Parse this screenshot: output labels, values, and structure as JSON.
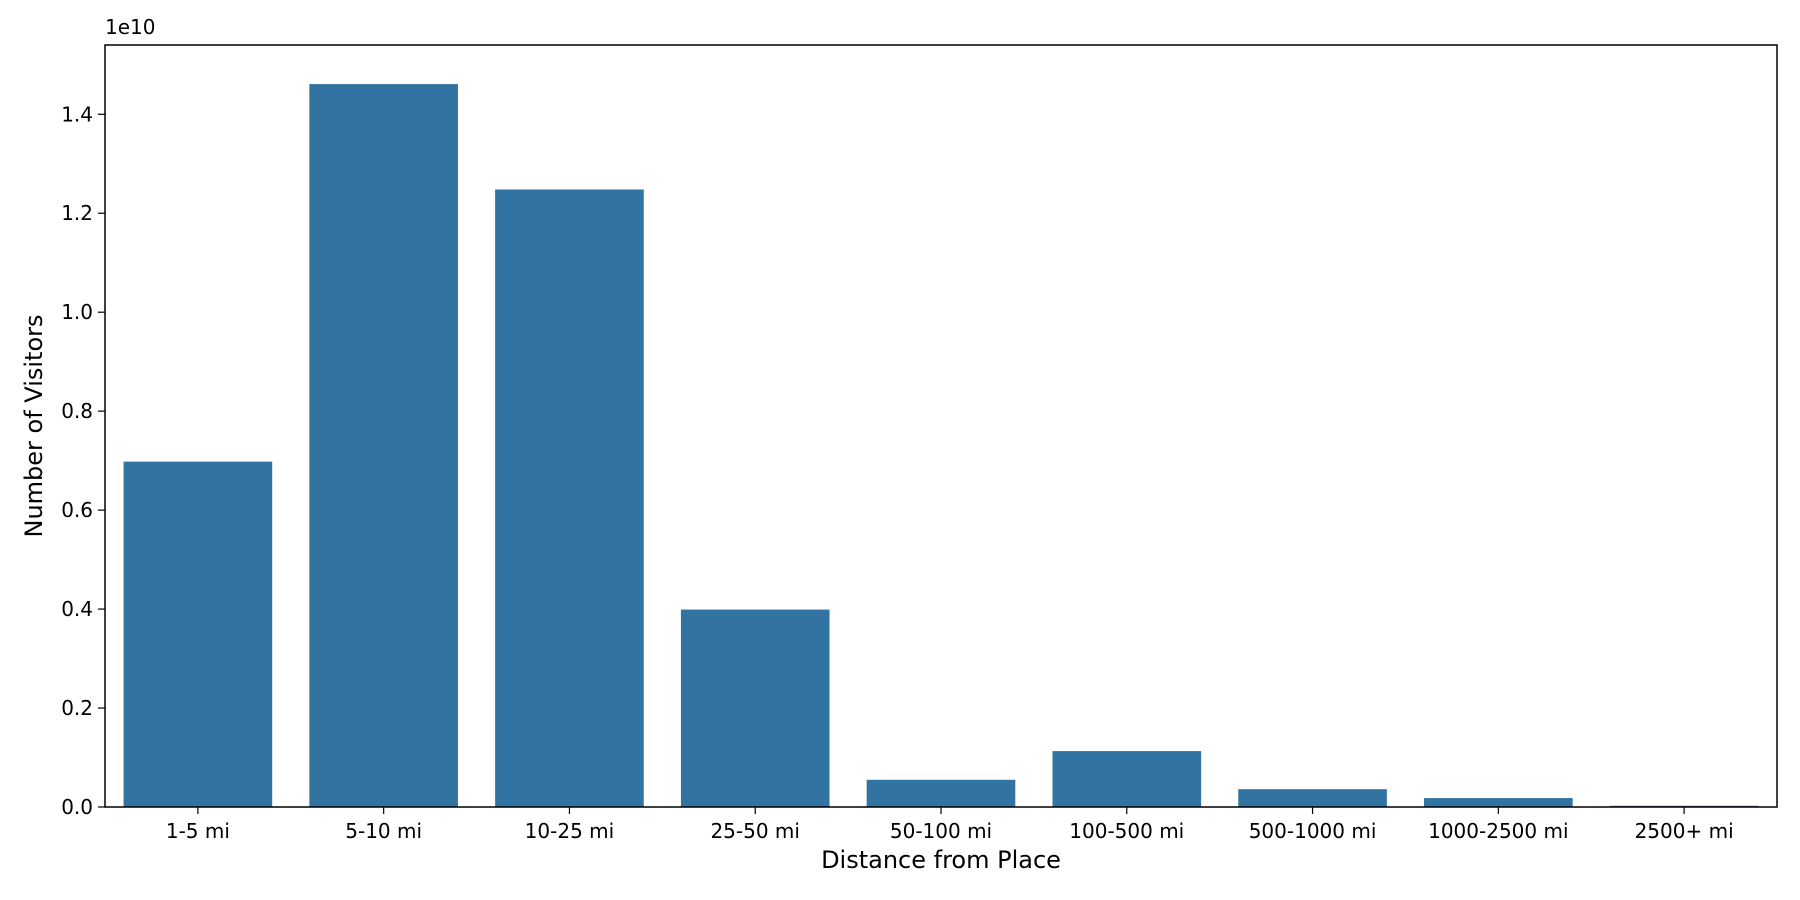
{
  "chart_data": {
    "type": "bar",
    "title": "",
    "xlabel": "Distance from Place",
    "ylabel": "Number of Visitors",
    "y_scale_label": "1e10",
    "y_scale": 10000000000,
    "categories": [
      "1-5 mi",
      "5-10 mi",
      "10-25 mi",
      "25-50 mi",
      "50-100 mi",
      "100-500 mi",
      "500-1000 mi",
      "1000-2500 mi",
      "2500+ mi"
    ],
    "values": [
      6980000000,
      14610000000,
      12480000000,
      3990000000,
      550000000,
      1130000000,
      360000000,
      180000000,
      25000000
    ],
    "ylim": [
      0,
      15400000000
    ],
    "yticks": [
      0.0,
      0.2,
      0.4,
      0.6,
      0.8,
      1.0,
      1.2,
      1.4
    ],
    "ytick_labels": [
      "0.0",
      "0.2",
      "0.4",
      "0.6",
      "0.8",
      "1.0",
      "1.2",
      "1.4"
    ],
    "bar_color": "#3274a1",
    "grid": false,
    "legend": "none"
  }
}
